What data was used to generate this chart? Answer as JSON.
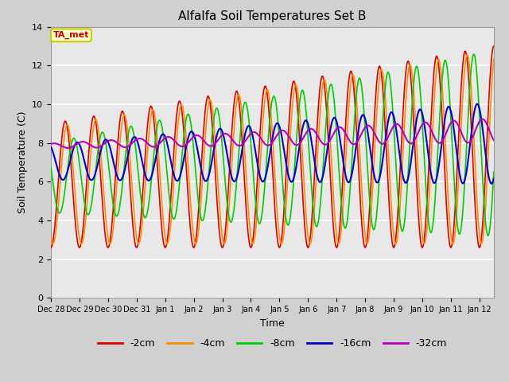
{
  "title": "Alfalfa Soil Temperatures Set B",
  "xlabel": "Time",
  "ylabel": "Soil Temperature (C)",
  "ylim": [
    0,
    14
  ],
  "yticks": [
    0,
    2,
    4,
    6,
    8,
    10,
    12,
    14
  ],
  "fig_bg_color": "#d0d0d0",
  "plot_bg_color": "#e8e8e8",
  "lines": {
    "-2cm": {
      "color": "#dd0000",
      "lw": 1.2
    },
    "-4cm": {
      "color": "#ff8c00",
      "lw": 1.2
    },
    "-8cm": {
      "color": "#00cc00",
      "lw": 1.2
    },
    "-16cm": {
      "color": "#0000cc",
      "lw": 1.5
    },
    "-32cm": {
      "color": "#bb00bb",
      "lw": 1.5
    }
  },
  "xtick_labels": [
    "Dec 28",
    "Dec 29",
    "Dec 30",
    "Dec 31",
    "Jan 1",
    "Jan 2",
    "Jan 3",
    "Jan 4",
    "Jan 5",
    "Jan 6",
    "Jan 7",
    "Jan 8",
    "Jan 9",
    "Jan 10",
    "Jan 11",
    "Jan 12"
  ],
  "ta_met_label": "TA_met",
  "ta_met_box_color": "#ffffcc",
  "ta_met_text_color": "#cc0000",
  "ta_met_edge_color": "#cccc00"
}
